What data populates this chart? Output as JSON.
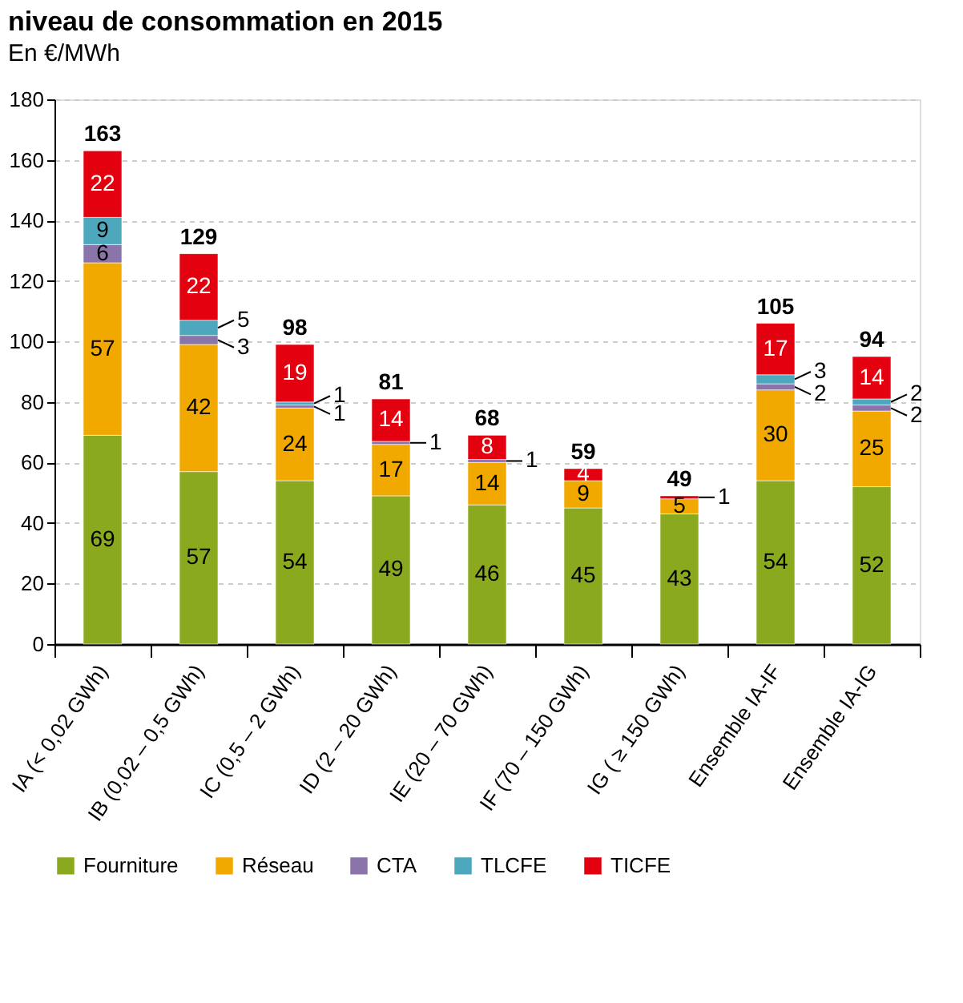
{
  "chart_data": {
    "type": "bar",
    "stacked": true,
    "title": "niveau de consommation en 2015",
    "subtitle": "En €/MWh",
    "categories": [
      "IA (< 0,02 GWh)",
      "IB (0,02 – 0,5 GWh)",
      "IC (0,5 – 2 GWh)",
      "ID (2 – 20 GWh)",
      "IE (20 – 70 GWh)",
      "IF (70 – 150 GWh)",
      "IG ( ≥ 150 GWh)",
      "Ensemble IA-IF",
      "Ensemble IA-IG"
    ],
    "series": [
      {
        "name": "Fourniture",
        "color": "#8aa91f",
        "values": [
          69,
          57,
          54,
          49,
          46,
          45,
          43,
          54,
          52
        ]
      },
      {
        "name": "Réseau",
        "color": "#f1a900",
        "values": [
          57,
          42,
          24,
          17,
          14,
          9,
          5,
          30,
          25
        ]
      },
      {
        "name": "CTA",
        "color": "#8b74a9",
        "values": [
          6,
          3,
          1,
          1,
          1,
          null,
          null,
          2,
          2
        ]
      },
      {
        "name": "TLCFE",
        "color": "#4ea8bd",
        "values": [
          9,
          5,
          1,
          null,
          null,
          null,
          null,
          3,
          2
        ]
      },
      {
        "name": "TICFE",
        "color": "#e3000f",
        "values": [
          22,
          22,
          19,
          14,
          8,
          4,
          1,
          17,
          14
        ]
      }
    ],
    "data_labels": true,
    "totals": [
      "163",
      "129",
      "98",
      "81",
      "68",
      "59",
      "49",
      "105",
      "94"
    ],
    "ylim": [
      0,
      180
    ],
    "yticks": [
      0,
      20,
      40,
      60,
      80,
      100,
      120,
      140,
      160,
      180
    ],
    "grid": "y",
    "legend": "bottom"
  }
}
